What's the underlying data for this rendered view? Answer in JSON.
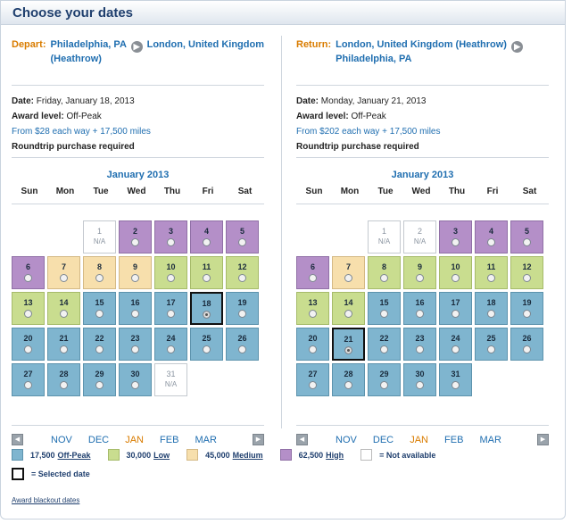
{
  "title": "Choose your dates",
  "depart": {
    "label": "Depart:",
    "from": "Philadelphia, PA",
    "to": "London, United Kingdom (Heathrow)",
    "date_label": "Date:",
    "date": "Friday, January 18, 2013",
    "award_label": "Award level:",
    "award": "Off-Peak",
    "price": "From $28 each way + 17,500 miles",
    "note": "Roundtrip purchase required",
    "cal_title": "January 2013",
    "days": [
      "Sun",
      "Mon",
      "Tue",
      "Wed",
      "Thu",
      "Fri",
      "Sat"
    ],
    "months": [
      "NOV",
      "DEC",
      "JAN",
      "FEB",
      "MAR"
    ],
    "current_month": "JAN",
    "cells": [
      {
        "d": "1",
        "t": "na",
        "na": "N/A"
      },
      {
        "d": "2",
        "t": "high"
      },
      {
        "d": "3",
        "t": "high"
      },
      {
        "d": "4",
        "t": "high"
      },
      {
        "d": "5",
        "t": "high"
      },
      {
        "d": "6",
        "t": "high"
      },
      {
        "d": "7",
        "t": "medium"
      },
      {
        "d": "8",
        "t": "medium"
      },
      {
        "d": "9",
        "t": "medium"
      },
      {
        "d": "10",
        "t": "low"
      },
      {
        "d": "11",
        "t": "low"
      },
      {
        "d": "12",
        "t": "low"
      },
      {
        "d": "13",
        "t": "low"
      },
      {
        "d": "14",
        "t": "low"
      },
      {
        "d": "15",
        "t": "offpeak"
      },
      {
        "d": "16",
        "t": "offpeak"
      },
      {
        "d": "17",
        "t": "offpeak"
      },
      {
        "d": "18",
        "t": "offpeak",
        "sel": true
      },
      {
        "d": "19",
        "t": "offpeak"
      },
      {
        "d": "20",
        "t": "offpeak"
      },
      {
        "d": "21",
        "t": "offpeak"
      },
      {
        "d": "22",
        "t": "offpeak"
      },
      {
        "d": "23",
        "t": "offpeak"
      },
      {
        "d": "24",
        "t": "offpeak"
      },
      {
        "d": "25",
        "t": "offpeak"
      },
      {
        "d": "26",
        "t": "offpeak"
      },
      {
        "d": "27",
        "t": "offpeak"
      },
      {
        "d": "28",
        "t": "offpeak"
      },
      {
        "d": "29",
        "t": "offpeak"
      },
      {
        "d": "30",
        "t": "offpeak"
      },
      {
        "d": "31",
        "t": "na",
        "na": "N/A"
      }
    ]
  },
  "return": {
    "label": "Return:",
    "from": "London, United Kingdom (Heathrow)",
    "to": "Philadelphia, PA",
    "date_label": "Date:",
    "date": "Monday, January 21, 2013",
    "award_label": "Award level:",
    "award": "Off-Peak",
    "price": "From $202 each way + 17,500 miles",
    "note": "Roundtrip purchase required",
    "cal_title": "January 2013",
    "days": [
      "Sun",
      "Mon",
      "Tue",
      "Wed",
      "Thu",
      "Fri",
      "Sat"
    ],
    "months": [
      "NOV",
      "DEC",
      "JAN",
      "FEB",
      "MAR"
    ],
    "current_month": "JAN",
    "cells": [
      {
        "d": "1",
        "t": "na",
        "na": "N/A"
      },
      {
        "d": "2",
        "t": "na",
        "na": "N/A"
      },
      {
        "d": "3",
        "t": "high"
      },
      {
        "d": "4",
        "t": "high"
      },
      {
        "d": "5",
        "t": "high"
      },
      {
        "d": "6",
        "t": "high"
      },
      {
        "d": "7",
        "t": "medium"
      },
      {
        "d": "8",
        "t": "low"
      },
      {
        "d": "9",
        "t": "low"
      },
      {
        "d": "10",
        "t": "low"
      },
      {
        "d": "11",
        "t": "low"
      },
      {
        "d": "12",
        "t": "low"
      },
      {
        "d": "13",
        "t": "low"
      },
      {
        "d": "14",
        "t": "low"
      },
      {
        "d": "15",
        "t": "offpeak"
      },
      {
        "d": "16",
        "t": "offpeak"
      },
      {
        "d": "17",
        "t": "offpeak"
      },
      {
        "d": "18",
        "t": "offpeak"
      },
      {
        "d": "19",
        "t": "offpeak"
      },
      {
        "d": "20",
        "t": "offpeak"
      },
      {
        "d": "21",
        "t": "offpeak",
        "sel": true
      },
      {
        "d": "22",
        "t": "offpeak"
      },
      {
        "d": "23",
        "t": "offpeak"
      },
      {
        "d": "24",
        "t": "offpeak"
      },
      {
        "d": "25",
        "t": "offpeak"
      },
      {
        "d": "26",
        "t": "offpeak"
      },
      {
        "d": "27",
        "t": "offpeak"
      },
      {
        "d": "28",
        "t": "offpeak"
      },
      {
        "d": "29",
        "t": "offpeak"
      },
      {
        "d": "30",
        "t": "offpeak"
      },
      {
        "d": "31",
        "t": "offpeak"
      }
    ]
  },
  "legend": {
    "offpeak": {
      "miles": "17,500",
      "name": "Off-Peak",
      "color": "#7fb5cf"
    },
    "low": {
      "miles": "30,000",
      "name": "Low",
      "color": "#c9dd8f"
    },
    "medium": {
      "miles": "45,000",
      "name": "Medium",
      "color": "#f7dfac"
    },
    "high": {
      "miles": "62,500",
      "name": "High",
      "color": "#b48fc8"
    },
    "na_text": "= Not available",
    "selected_text": "= Selected date"
  },
  "blackout_link": "Award blackout dates"
}
